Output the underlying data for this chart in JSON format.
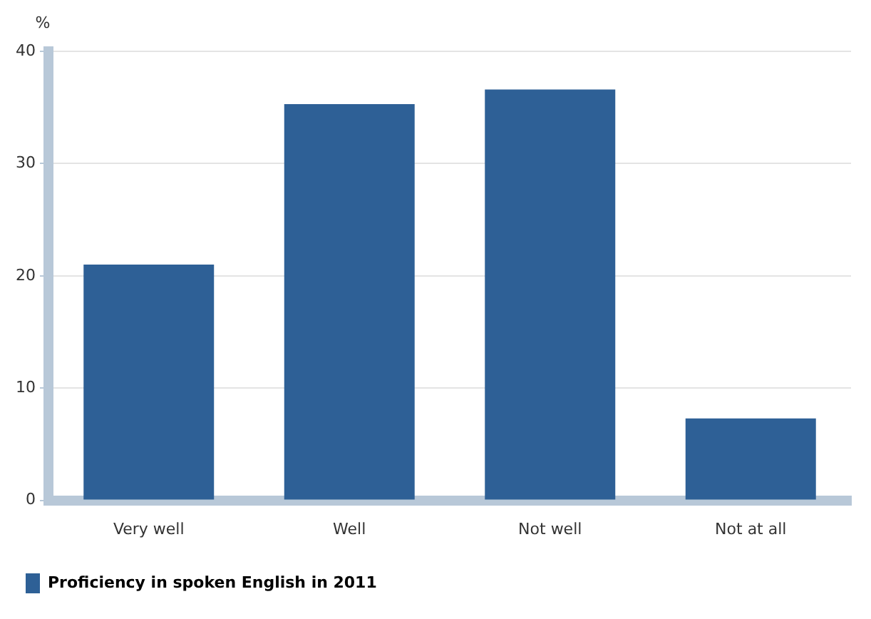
{
  "chart_data": {
    "type": "bar",
    "ylabel": "%",
    "categories": [
      "Very well",
      "Well",
      "Not well",
      "Not at all"
    ],
    "series": [
      {
        "name": "Proficiency in spoken English in 2011",
        "color": "#2e6096",
        "values": [
          21.0,
          35.3,
          36.6,
          7.3
        ]
      }
    ],
    "ylim": [
      0,
      40
    ],
    "yticks": [
      0,
      10,
      20,
      30,
      40
    ],
    "grid": "y",
    "legend": "bottom left"
  }
}
